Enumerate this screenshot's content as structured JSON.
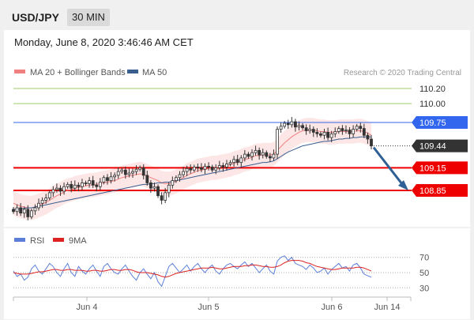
{
  "header": {
    "symbol": "USD/JPY",
    "timeframe": "30 MIN",
    "timestamp": "Monday, June 8, 2020 3:46:46 AM CET"
  },
  "chart_data": [
    {
      "type": "line",
      "subtype": "candlestick",
      "title": "",
      "legend": [
        {
          "name": "MA 20 + Bollinger Bands",
          "color": "#f08080"
        },
        {
          "name": "MA 50",
          "color": "#3a5f8f"
        }
      ],
      "credit": "Research © 2020 Trading Central",
      "ylim": [
        108.5,
        110.37
      ],
      "x_ticks": [
        "Jun 4",
        "Jun 5",
        "Jun 6",
        "Jun 14"
      ],
      "levels": [
        {
          "label": "110.20",
          "value": 110.2,
          "color": "#9ccc65",
          "style": "thin",
          "tag": false
        },
        {
          "label": "110.00",
          "value": 110.0,
          "color": "#9ccc65",
          "style": "thin",
          "tag": false
        },
        {
          "label": "109.75",
          "value": 109.75,
          "color": "#3366ee",
          "style": "thin",
          "tag": true
        },
        {
          "label": "109.44",
          "value": 109.44,
          "color": "#333333",
          "style": "dotted",
          "tag": true
        },
        {
          "label": "109.15",
          "value": 109.15,
          "color": "#ee0000",
          "style": "thick",
          "tag": true
        },
        {
          "label": "108.85",
          "value": 108.85,
          "color": "#ee0000",
          "style": "thick",
          "tag": true
        }
      ],
      "close_series": [
        108.57,
        108.62,
        108.55,
        108.6,
        108.5,
        108.58,
        108.62,
        108.68,
        108.72,
        108.75,
        108.82,
        108.86,
        108.88,
        108.84,
        108.9,
        108.93,
        108.88,
        108.92,
        108.9,
        108.95,
        108.94,
        108.98,
        108.92,
        108.9,
        108.96,
        109.02,
        108.98,
        109.03,
        109.05,
        109.1,
        109.12,
        109.06,
        109.08,
        109.1,
        109.13,
        109.15,
        109.05,
        108.95,
        108.88,
        108.9,
        108.78,
        108.72,
        108.82,
        108.92,
        108.98,
        109.02,
        109.06,
        109.1,
        109.14,
        109.12,
        109.16,
        109.15,
        109.13,
        109.17,
        109.16,
        109.12,
        109.15,
        109.18,
        109.16,
        109.2,
        109.22,
        109.26,
        109.22,
        109.28,
        109.33,
        109.3,
        109.35,
        109.38,
        109.32,
        109.35,
        109.3,
        109.28,
        109.33,
        109.66,
        109.7,
        109.74,
        109.72,
        109.76,
        109.69,
        109.71,
        109.68,
        109.64,
        109.66,
        109.62,
        109.6,
        109.58,
        109.62,
        109.55,
        109.6,
        109.63,
        109.67,
        109.64,
        109.65,
        109.6,
        109.66,
        109.7,
        109.67,
        109.58,
        109.53,
        109.44
      ],
      "ma20_series": [
        108.68,
        108.66,
        108.64,
        108.63,
        108.62,
        108.62,
        108.63,
        108.65,
        108.67,
        108.69,
        108.72,
        108.75,
        108.78,
        108.8,
        108.83,
        108.85,
        108.86,
        108.88,
        108.89,
        108.9,
        108.91,
        108.92,
        108.92,
        108.93,
        108.94,
        108.95,
        108.96,
        108.97,
        108.98,
        109.0,
        109.02,
        109.03,
        109.04,
        109.05,
        109.06,
        109.07,
        109.06,
        109.04,
        109.02,
        109.0,
        108.98,
        108.95,
        108.94,
        108.94,
        108.95,
        108.97,
        108.99,
        109.02,
        109.05,
        109.07,
        109.09,
        109.11,
        109.12,
        109.13,
        109.14,
        109.15,
        109.15,
        109.16,
        109.17,
        109.18,
        109.19,
        109.21,
        109.22,
        109.24,
        109.26,
        109.27,
        109.29,
        109.31,
        109.31,
        109.32,
        109.32,
        109.32,
        109.33,
        109.38,
        109.43,
        109.48,
        109.52,
        109.56,
        109.59,
        109.62,
        109.64,
        109.65,
        109.65,
        109.65,
        109.64,
        109.63,
        109.63,
        109.62,
        109.62,
        109.62,
        109.63,
        109.63,
        109.63,
        109.63,
        109.63,
        109.64,
        109.64,
        109.63,
        109.61,
        109.58
      ],
      "ma50_series": [
        108.6,
        108.6,
        108.61,
        108.61,
        108.62,
        108.62,
        108.63,
        108.64,
        108.65,
        108.66,
        108.67,
        108.68,
        108.69,
        108.7,
        108.71,
        108.72,
        108.73,
        108.74,
        108.75,
        108.76,
        108.77,
        108.78,
        108.79,
        108.8,
        108.81,
        108.82,
        108.83,
        108.84,
        108.85,
        108.86,
        108.87,
        108.88,
        108.89,
        108.9,
        108.91,
        108.92,
        108.93,
        108.93,
        108.94,
        108.94,
        108.95,
        108.95,
        108.96,
        108.96,
        108.97,
        108.98,
        108.99,
        109.0,
        109.01,
        109.02,
        109.03,
        109.04,
        109.05,
        109.06,
        109.07,
        109.08,
        109.09,
        109.1,
        109.11,
        109.12,
        109.13,
        109.14,
        109.15,
        109.16,
        109.17,
        109.18,
        109.19,
        109.2,
        109.21,
        109.22,
        109.22,
        109.23,
        109.24,
        109.27,
        109.3,
        109.33,
        109.36,
        109.38,
        109.4,
        109.42,
        109.44,
        109.45,
        109.46,
        109.47,
        109.48,
        109.49,
        109.5,
        109.5,
        109.51,
        109.52,
        109.53,
        109.53,
        109.54,
        109.54,
        109.55,
        109.55,
        109.56,
        109.56,
        109.56,
        109.56
      ],
      "band_width": 0.16,
      "forecast_target": 108.85
    },
    {
      "type": "line",
      "title": "",
      "legend": [
        {
          "name": "RSI",
          "color": "#5b7fd9"
        },
        {
          "name": "9MA",
          "color": "#dd2222"
        }
      ],
      "ylim": [
        22,
        78
      ],
      "y_ticks": [
        "70",
        "50",
        "30"
      ],
      "rsi_series": [
        52,
        45,
        48,
        40,
        44,
        55,
        60,
        52,
        48,
        55,
        62,
        58,
        50,
        45,
        55,
        62,
        50,
        45,
        58,
        52,
        48,
        55,
        60,
        52,
        45,
        58,
        62,
        55,
        50,
        48,
        55,
        60,
        52,
        45,
        40,
        50,
        55,
        48,
        42,
        50,
        38,
        32,
        45,
        58,
        62,
        56,
        50,
        55,
        60,
        52,
        58,
        62,
        55,
        50,
        56,
        60,
        52,
        48,
        55,
        60,
        62,
        58,
        55,
        60,
        64,
        58,
        62,
        56,
        50,
        55,
        60,
        52,
        48,
        65,
        70,
        72,
        66,
        70,
        62,
        60,
        58,
        54,
        60,
        56,
        50,
        52,
        56,
        48,
        54,
        58,
        62,
        56,
        58,
        52,
        60,
        62,
        56,
        48,
        46,
        44
      ],
      "ma9_series": [
        50,
        49,
        48,
        48,
        48,
        49,
        50,
        51,
        51,
        52,
        53,
        54,
        54,
        53,
        53,
        54,
        54,
        53,
        53,
        53,
        52,
        52,
        53,
        53,
        52,
        52,
        53,
        54,
        54,
        53,
        53,
        54,
        54,
        53,
        51,
        50,
        50,
        50,
        49,
        48,
        47,
        45,
        44,
        45,
        47,
        49,
        50,
        51,
        52,
        53,
        54,
        55,
        56,
        56,
        56,
        57,
        56,
        55,
        55,
        56,
        57,
        58,
        58,
        58,
        59,
        59,
        60,
        60,
        59,
        58,
        58,
        57,
        57,
        58,
        60,
        63,
        65,
        66,
        66,
        66,
        65,
        63,
        62,
        60,
        58,
        57,
        56,
        55,
        54,
        54,
        55,
        56,
        56,
        56,
        56,
        57,
        57,
        56,
        54,
        52
      ]
    }
  ]
}
